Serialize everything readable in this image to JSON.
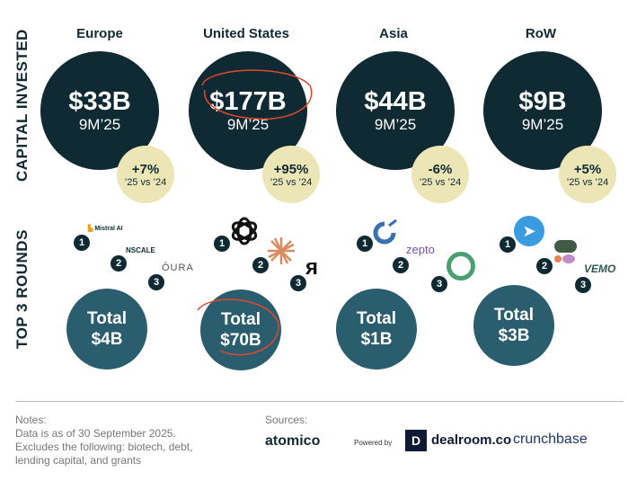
{
  "labels": {
    "capital": "CAPITAL INVESTED",
    "rounds": "TOP 3 ROUNDS"
  },
  "regions": [
    {
      "name": "Europe",
      "amount": "$33B",
      "period": "9M’25",
      "growth": "+7%",
      "compare": "’25 vs ’24",
      "total_label": "Total",
      "total": "$4B",
      "rounds": [
        "Mistral AI",
        "NSCALE",
        "ŌURA"
      ]
    },
    {
      "name": "United States",
      "amount": "$177B",
      "period": "9M’25",
      "growth": "+95%",
      "compare": "’25 vs ’24",
      "total_label": "Total",
      "total": "$70B",
      "rounds": [
        "OpenAI",
        "Anthropic",
        "Scale AI"
      ]
    },
    {
      "name": "Asia",
      "amount": "$44B",
      "period": "9M’25",
      "growth": "-6%",
      "compare": "’25 vs ’24",
      "total_label": "Total",
      "total": "$1B",
      "rounds": [
        "Unicorn",
        "zepto",
        "Ring"
      ]
    },
    {
      "name": "RoW",
      "amount": "$9B",
      "period": "9M’25",
      "growth": "+5%",
      "compare": "’25 vs ’24",
      "total_label": "Total",
      "total": "$3B",
      "rounds": [
        "Telegram",
        "Shapes",
        "VEMO"
      ]
    }
  ],
  "ranks": [
    "1",
    "2",
    "3"
  ],
  "footer": {
    "notes_title": "Notes:",
    "notes": "Data is as of 30 September 2025. Excludes the following: biotech, debt, lending capital, and grants",
    "sources_title": "Sources:",
    "atomico": "atomico",
    "powered_by": "Powered by",
    "dealroom": "dealroom.co",
    "crunchbase": "crunchbase"
  },
  "colors": {
    "dark": "#0f2a33",
    "teal": "#2a5d6e",
    "beige": "#ece6b6",
    "annotation": "#e0492b"
  }
}
